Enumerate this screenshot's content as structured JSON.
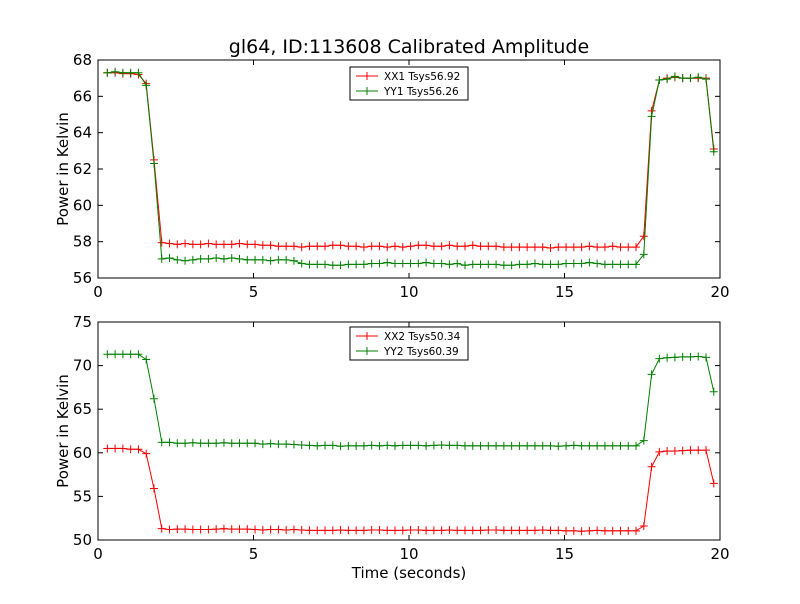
{
  "figure": {
    "title": "gl64, ID:113608 Calibrated Amplitude"
  },
  "chart_data": [
    {
      "type": "line",
      "title": "gl64, ID:113608 Calibrated Amplitude",
      "xlabel": "",
      "ylabel": "Power in Kelvin",
      "xlim": [
        0,
        20
      ],
      "ylim": [
        56,
        68
      ],
      "xticks": [
        "0",
        "5",
        "10",
        "15",
        "20"
      ],
      "yticks": [
        "56",
        "58",
        "60",
        "62",
        "64",
        "66",
        "68"
      ],
      "grid": false,
      "legend_position": "top-center",
      "x": [
        0.3,
        0.55,
        0.8,
        1.05,
        1.3,
        1.55,
        1.8,
        2.05,
        2.3,
        2.55,
        2.8,
        3.05,
        3.3,
        3.55,
        3.8,
        4.05,
        4.3,
        4.55,
        4.8,
        5.05,
        5.3,
        5.55,
        5.8,
        6.05,
        6.3,
        6.55,
        6.8,
        7.05,
        7.3,
        7.55,
        7.8,
        8.05,
        8.3,
        8.55,
        8.8,
        9.05,
        9.3,
        9.55,
        9.8,
        10.05,
        10.3,
        10.55,
        10.8,
        11.05,
        11.3,
        11.55,
        11.8,
        12.05,
        12.3,
        12.55,
        12.8,
        13.05,
        13.3,
        13.55,
        13.8,
        14.05,
        14.3,
        14.55,
        14.8,
        15.05,
        15.3,
        15.55,
        15.8,
        16.05,
        16.3,
        16.55,
        16.8,
        17.05,
        17.3,
        17.55,
        17.8,
        18.05,
        18.3,
        18.55,
        18.8,
        19.05,
        19.3,
        19.55,
        19.8
      ],
      "series": [
        {
          "name": "XX1 Tsys56.92",
          "color": "#ff0000",
          "values": [
            67.3,
            67.3,
            67.25,
            67.25,
            67.2,
            66.7,
            62.5,
            57.95,
            57.9,
            57.85,
            57.9,
            57.85,
            57.85,
            57.9,
            57.85,
            57.85,
            57.85,
            57.9,
            57.85,
            57.85,
            57.8,
            57.8,
            57.75,
            57.75,
            57.75,
            57.7,
            57.75,
            57.75,
            57.75,
            57.8,
            57.8,
            57.75,
            57.75,
            57.7,
            57.75,
            57.75,
            57.7,
            57.75,
            57.7,
            57.75,
            57.8,
            57.8,
            57.75,
            57.75,
            57.8,
            57.75,
            57.75,
            57.8,
            57.75,
            57.75,
            57.75,
            57.7,
            57.7,
            57.7,
            57.7,
            57.7,
            57.7,
            57.65,
            57.7,
            57.7,
            57.7,
            57.7,
            57.75,
            57.7,
            57.7,
            57.75,
            57.7,
            57.7,
            57.7,
            58.3,
            65.2,
            66.9,
            67.0,
            67.05,
            67.0,
            67.0,
            67.0,
            67.0,
            63.1
          ]
        },
        {
          "name": "YY1 Tsys56.26",
          "color": "#008000",
          "values": [
            67.3,
            67.35,
            67.3,
            67.3,
            67.3,
            66.6,
            62.3,
            57.05,
            57.1,
            57.0,
            56.95,
            57.0,
            57.05,
            57.05,
            57.1,
            57.05,
            57.1,
            57.05,
            57.0,
            57.0,
            57.0,
            56.95,
            57.0,
            57.0,
            56.95,
            56.8,
            56.75,
            56.75,
            56.75,
            56.7,
            56.7,
            56.75,
            56.75,
            56.75,
            56.8,
            56.8,
            56.85,
            56.8,
            56.8,
            56.8,
            56.8,
            56.85,
            56.8,
            56.8,
            56.75,
            56.8,
            56.7,
            56.75,
            56.75,
            56.75,
            56.75,
            56.7,
            56.7,
            56.75,
            56.75,
            56.8,
            56.75,
            56.75,
            56.75,
            56.8,
            56.8,
            56.8,
            56.85,
            56.8,
            56.75,
            56.75,
            56.75,
            56.75,
            56.75,
            57.3,
            64.9,
            66.9,
            66.95,
            67.1,
            67.0,
            67.0,
            67.05,
            66.95,
            62.95
          ]
        }
      ]
    },
    {
      "type": "line",
      "title": "",
      "xlabel": "Time (seconds)",
      "ylabel": "Power in Kelvin",
      "xlim": [
        0,
        20
      ],
      "ylim": [
        50,
        75
      ],
      "xticks": [
        "0",
        "5",
        "10",
        "15",
        "20"
      ],
      "yticks": [
        "50",
        "55",
        "60",
        "65",
        "70",
        "75"
      ],
      "grid": false,
      "legend_position": "top-center",
      "x": [
        0.3,
        0.55,
        0.8,
        1.05,
        1.3,
        1.55,
        1.8,
        2.05,
        2.3,
        2.55,
        2.8,
        3.05,
        3.3,
        3.55,
        3.8,
        4.05,
        4.3,
        4.55,
        4.8,
        5.05,
        5.3,
        5.55,
        5.8,
        6.05,
        6.3,
        6.55,
        6.8,
        7.05,
        7.3,
        7.55,
        7.8,
        8.05,
        8.3,
        8.55,
        8.8,
        9.05,
        9.3,
        9.55,
        9.8,
        10.05,
        10.3,
        10.55,
        10.8,
        11.05,
        11.3,
        11.55,
        11.8,
        12.05,
        12.3,
        12.55,
        12.8,
        13.05,
        13.3,
        13.55,
        13.8,
        14.05,
        14.3,
        14.55,
        14.8,
        15.05,
        15.3,
        15.55,
        15.8,
        16.05,
        16.3,
        16.55,
        16.8,
        17.05,
        17.3,
        17.55,
        17.8,
        18.05,
        18.3,
        18.55,
        18.8,
        19.05,
        19.3,
        19.55,
        19.8
      ],
      "series": [
        {
          "name": "XX2 Tsys50.34",
          "color": "#ff0000",
          "values": [
            60.5,
            60.5,
            60.5,
            60.4,
            60.4,
            59.9,
            55.9,
            51.3,
            51.2,
            51.25,
            51.25,
            51.2,
            51.2,
            51.2,
            51.25,
            51.3,
            51.25,
            51.25,
            51.25,
            51.2,
            51.15,
            51.2,
            51.2,
            51.15,
            51.2,
            51.15,
            51.1,
            51.1,
            51.1,
            51.1,
            51.15,
            51.1,
            51.1,
            51.1,
            51.15,
            51.15,
            51.1,
            51.1,
            51.1,
            51.15,
            51.15,
            51.1,
            51.1,
            51.1,
            51.15,
            51.1,
            51.1,
            51.1,
            51.1,
            51.15,
            51.15,
            51.1,
            51.1,
            51.1,
            51.1,
            51.1,
            51.15,
            51.1,
            51.1,
            51.05,
            51.05,
            51.0,
            51.05,
            51.1,
            51.05,
            51.05,
            51.05,
            51.05,
            51.05,
            51.6,
            58.4,
            60.1,
            60.2,
            60.2,
            60.25,
            60.3,
            60.3,
            60.3,
            56.5
          ]
        },
        {
          "name": "YY2 Tsys60.39",
          "color": "#008000",
          "values": [
            71.3,
            71.3,
            71.3,
            71.3,
            71.3,
            70.7,
            66.2,
            61.2,
            61.2,
            61.1,
            61.1,
            61.15,
            61.1,
            61.1,
            61.1,
            61.15,
            61.1,
            61.1,
            61.1,
            61.1,
            61.0,
            61.05,
            61.0,
            61.0,
            60.95,
            60.9,
            60.85,
            60.8,
            60.85,
            60.85,
            60.75,
            60.8,
            60.8,
            60.8,
            60.85,
            60.8,
            60.85,
            60.8,
            60.85,
            60.85,
            60.85,
            60.8,
            60.85,
            60.9,
            60.85,
            60.85,
            60.8,
            60.8,
            60.8,
            60.8,
            60.8,
            60.8,
            60.8,
            60.8,
            60.8,
            60.8,
            60.8,
            60.8,
            60.75,
            60.8,
            60.85,
            60.8,
            60.8,
            60.8,
            60.8,
            60.8,
            60.8,
            60.8,
            60.8,
            61.4,
            69.0,
            70.8,
            70.9,
            70.95,
            71.0,
            71.0,
            71.05,
            70.95,
            67.0
          ]
        }
      ]
    }
  ]
}
